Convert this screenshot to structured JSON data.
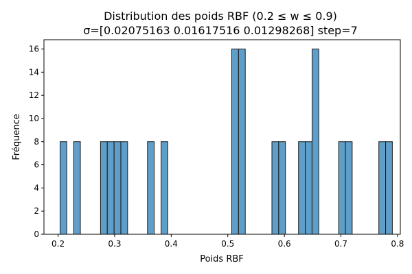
{
  "chart_data": {
    "type": "bar",
    "title": "Distribution des poids RBF (0.2 ≤ w ≤ 0.9)",
    "subtitle": "σ=[0.02075163 0.01617516 0.01298268] step=7",
    "xlabel": "Poids RBF",
    "ylabel": "Fréquence",
    "xlim": [
      0.175,
      0.805
    ],
    "ylim": [
      0,
      16.8
    ],
    "xticks": [
      0.2,
      0.3,
      0.4,
      0.5,
      0.6,
      0.7,
      0.8
    ],
    "xtick_labels": [
      "0.2",
      "0.3",
      "0.4",
      "0.5",
      "0.6",
      "0.7",
      "0.8"
    ],
    "yticks": [
      0,
      2,
      4,
      6,
      8,
      10,
      12,
      14,
      16
    ],
    "ytick_labels": [
      "0",
      "2",
      "4",
      "6",
      "8",
      "10",
      "12",
      "14",
      "16"
    ],
    "grid": false,
    "bin_width": 0.0119,
    "bars": [
      {
        "x0": 0.2035,
        "value": 8
      },
      {
        "x0": 0.2275,
        "value": 8
      },
      {
        "x0": 0.275,
        "value": 8
      },
      {
        "x0": 0.287,
        "value": 8
      },
      {
        "x0": 0.299,
        "value": 8
      },
      {
        "x0": 0.311,
        "value": 8
      },
      {
        "x0": 0.358,
        "value": 8
      },
      {
        "x0": 0.382,
        "value": 8
      },
      {
        "x0": 0.507,
        "value": 16
      },
      {
        "x0": 0.519,
        "value": 16
      },
      {
        "x0": 0.578,
        "value": 8
      },
      {
        "x0": 0.59,
        "value": 8
      },
      {
        "x0": 0.625,
        "value": 8
      },
      {
        "x0": 0.637,
        "value": 8
      },
      {
        "x0": 0.649,
        "value": 16
      },
      {
        "x0": 0.696,
        "value": 8
      },
      {
        "x0": 0.708,
        "value": 8
      },
      {
        "x0": 0.767,
        "value": 8
      },
      {
        "x0": 0.779,
        "value": 8
      }
    ]
  }
}
